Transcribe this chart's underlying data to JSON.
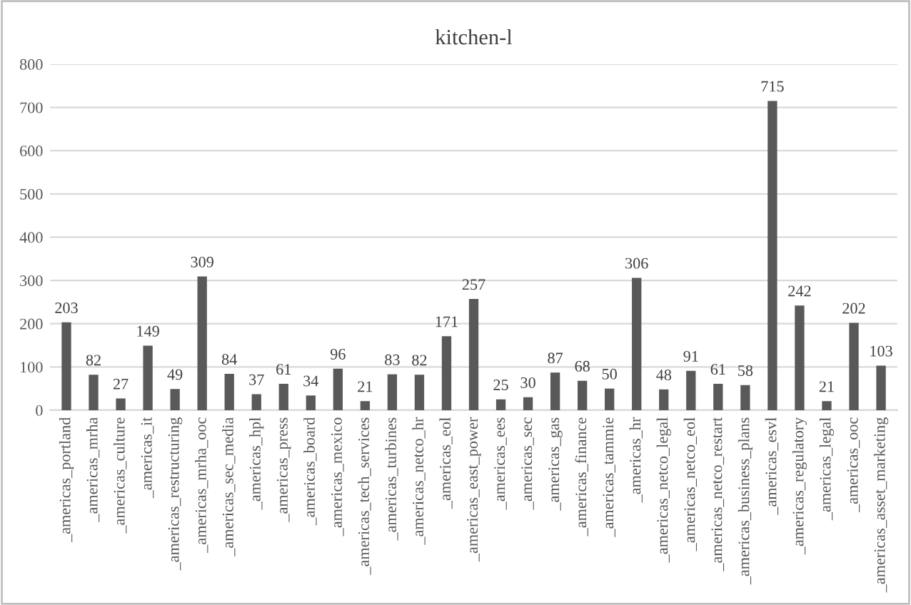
{
  "chart_data": {
    "type": "bar",
    "title": "kitchen-l",
    "categories": [
      "_americas_portland",
      "_americas_mrha",
      "_americas_culture",
      "_americas_it",
      "_americas_restructuring",
      "_americas_mrha_ooc",
      "_americas_sec_media",
      "_americas_hpl",
      "_americas_press",
      "_americas_board",
      "_americas_mexico",
      "_americas_tech_services",
      "_americas_turbines",
      "_americas_netco_hr",
      "_americas_eol",
      "_americas_east_power",
      "_americas_ees",
      "_americas_sec",
      "_americas_gas",
      "_americas_finance",
      "_americas_tammie",
      "_americas_hr",
      "_americas_netco_legal",
      "_americas_netco_eol",
      "_americas_netco_restart",
      "_americas_business_plans",
      "_americas_esvl",
      "_americas_regulatory",
      "_americas_legal",
      "_americas_ooc",
      "_americas_asset_marketing"
    ],
    "values": [
      203,
      82,
      27,
      149,
      49,
      309,
      84,
      37,
      61,
      34,
      96,
      21,
      83,
      82,
      171,
      257,
      25,
      30,
      87,
      68,
      50,
      306,
      48,
      91,
      61,
      58,
      715,
      242,
      21,
      202,
      103
    ],
    "color": "#595959",
    "ylim": [
      0,
      800
    ],
    "yticks": [
      0,
      100,
      200,
      300,
      400,
      500,
      600,
      700,
      800
    ],
    "grid": "y",
    "data_labels": true
  }
}
